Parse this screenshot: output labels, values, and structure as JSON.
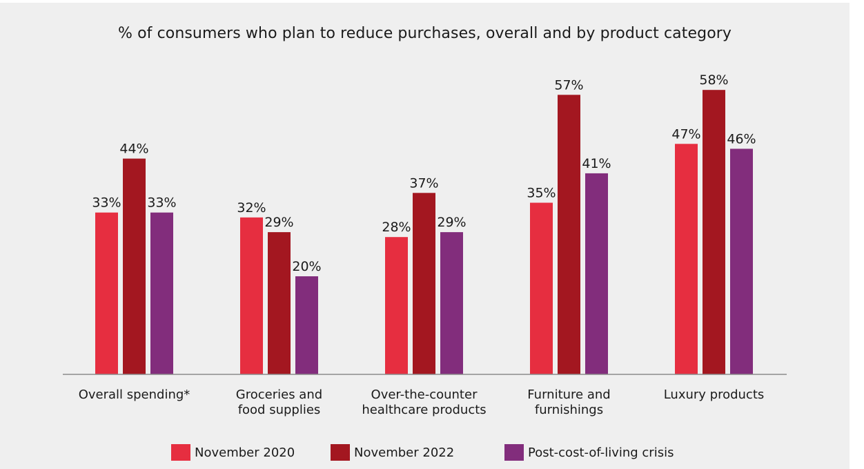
{
  "chart_data": {
    "type": "bar",
    "title": "% of consumers who plan to reduce purchases, overall and by product category",
    "categories": [
      "Overall spending*",
      "Groceries and\nfood supplies",
      "Over-the-counter\nhealthcare products",
      "Furniture and\nfurnishings",
      "Luxury products"
    ],
    "series": [
      {
        "name": "November 2020",
        "values": [
          33,
          32,
          28,
          35,
          47
        ],
        "labels": [
          "33%",
          "32%",
          "28%",
          "35%",
          "47%"
        ],
        "color": "#e62e40"
      },
      {
        "name": "November 2022",
        "values": [
          44,
          29,
          37,
          57,
          58
        ],
        "labels": [
          "44%",
          "29%",
          "37%",
          "57%",
          "58%"
        ],
        "color": "#a31720"
      },
      {
        "name": "Post-cost-of-living crisis",
        "values": [
          33,
          20,
          29,
          41,
          46
        ],
        "labels": [
          "33%",
          "20%",
          "29%",
          "41%",
          "46%"
        ],
        "color": "#822d7c"
      }
    ],
    "xlabel": "",
    "ylabel": "",
    "ylim": [
      0,
      66
    ],
    "grid": false,
    "legend_position": "bottom"
  }
}
